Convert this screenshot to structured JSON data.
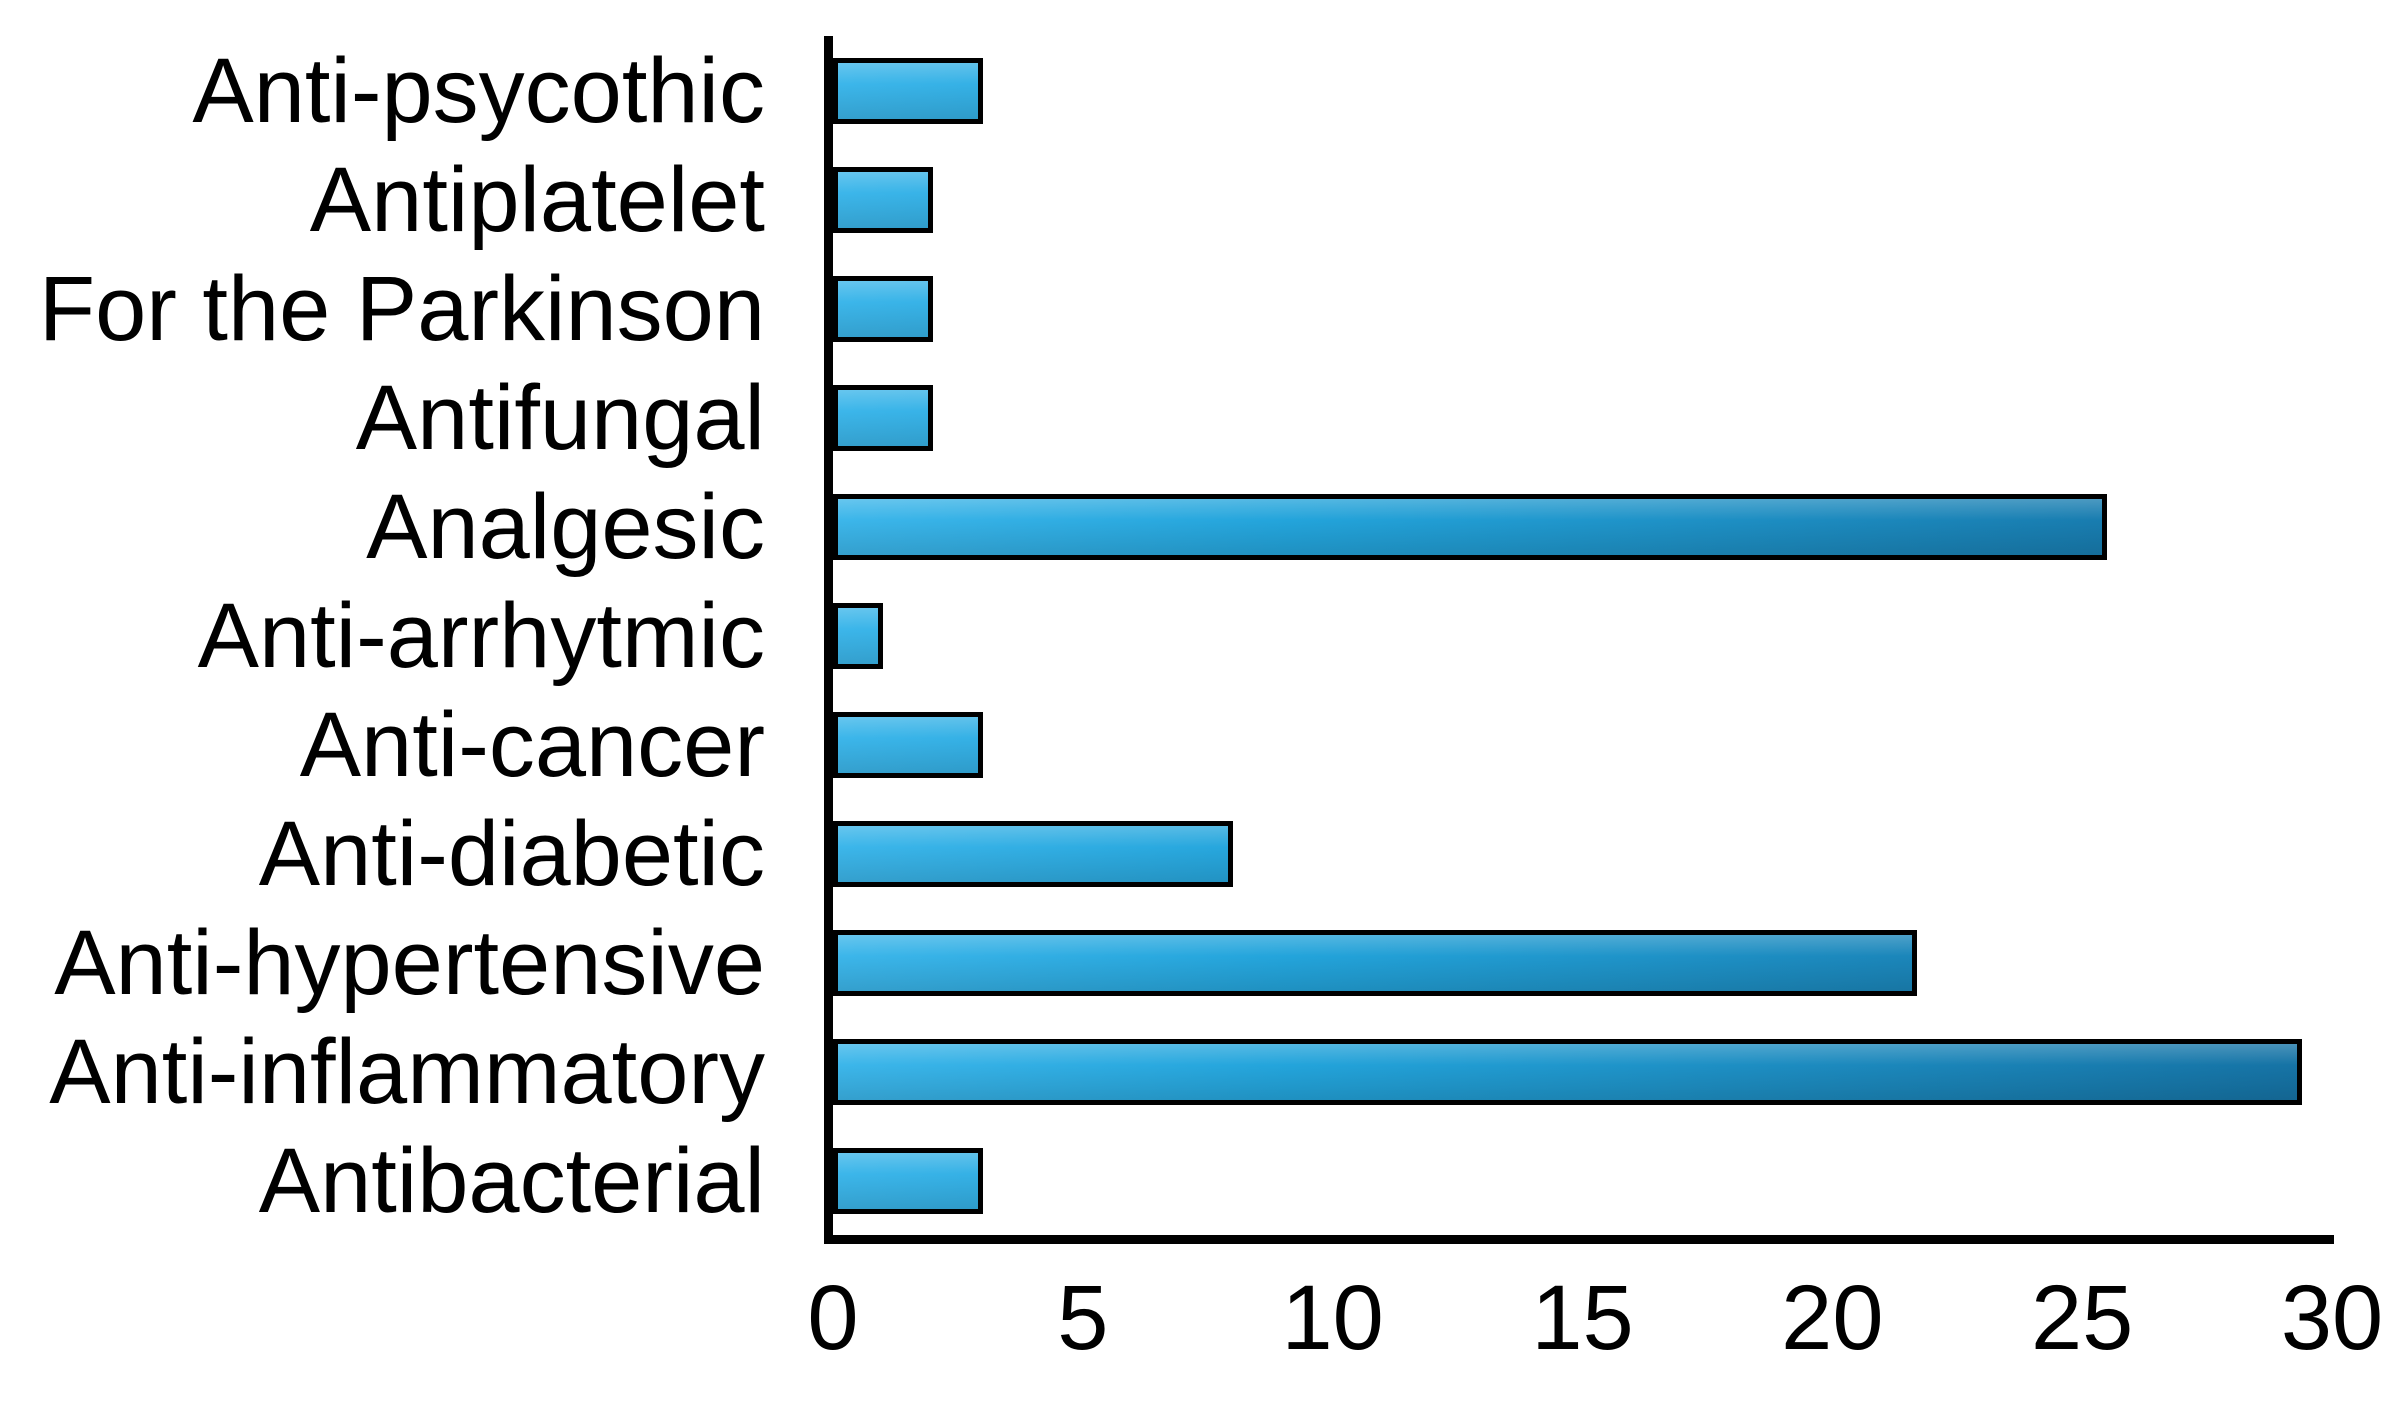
{
  "chart_data": {
    "type": "bar",
    "orientation": "horizontal",
    "title": "",
    "xlabel": "",
    "ylabel": "",
    "categories": [
      "Anti-psycothic",
      "Antiplatelet",
      "For the Parkinson",
      "Antifungal",
      "Analgesic",
      "Anti-arrhytmic",
      "Anti-cancer",
      "Anti-diabetic",
      "Anti-hypertensive",
      "Anti-inflammatory",
      "Antibacterial"
    ],
    "values": [
      3,
      2,
      2,
      2,
      25.5,
      1,
      3,
      8,
      21.7,
      29.4,
      3
    ],
    "xlim": [
      0,
      30
    ],
    "xticks": [
      0,
      5,
      10,
      15,
      20,
      25,
      30
    ],
    "grid": false,
    "legend_position": "none",
    "colors": {
      "bar_gradient_start": "#3cb6ea",
      "bar_gradient_end": "#1571a3",
      "bar_border": "#000000",
      "axis": "#000000",
      "text": "#000000",
      "background": "#ffffff"
    }
  }
}
